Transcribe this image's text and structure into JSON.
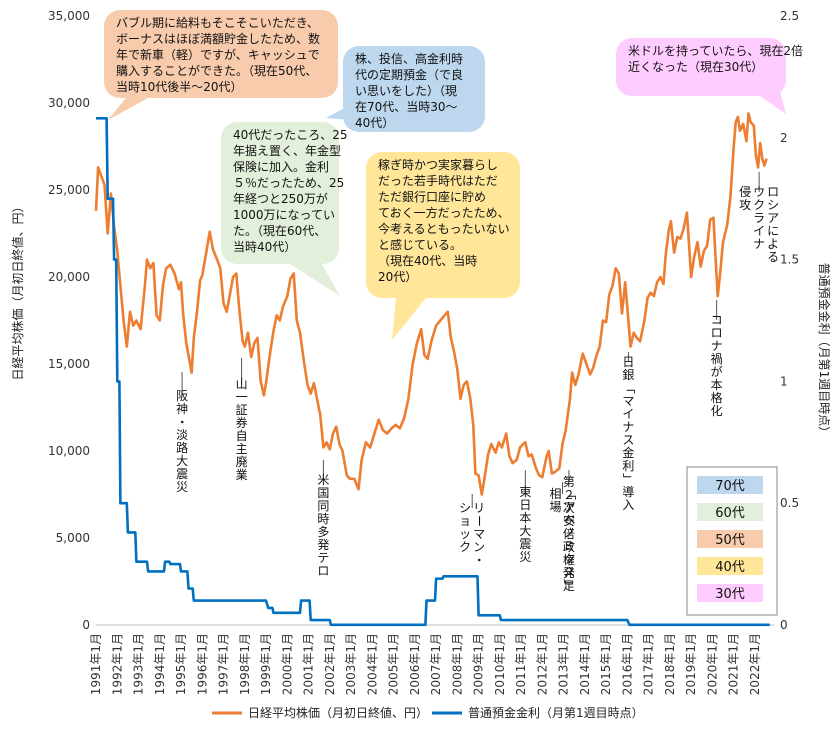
{
  "chart_data": {
    "type": "line",
    "y_left": {
      "label": "日経平均株価（月初日終値、円）",
      "range": [
        0,
        35000
      ],
      "ticks": [
        "0",
        "5,000",
        "10,000",
        "15,000",
        "20,000",
        "25,000",
        "30,000",
        "35,000"
      ]
    },
    "y_right": {
      "label": "普通預金金利（月第1週目時点）",
      "range": [
        0,
        2.5
      ],
      "ticks": [
        "0",
        "0.5",
        "1",
        "1.5",
        "2",
        "2.5"
      ]
    },
    "x_ticks": [
      "1991年1月",
      "1992年1月",
      "1993年1月",
      "1994年1月",
      "1995年1月",
      "1996年1月",
      "1997年1月",
      "1998年1月",
      "1999年1月",
      "2000年1月",
      "2001年1月",
      "2002年1月",
      "2003年1月",
      "2004年1月",
      "2005年1月",
      "2006年1月",
      "2007年1月",
      "2008年1月",
      "2009年1月",
      "2010年1月",
      "2011年1月",
      "2012年1月",
      "2013年1月",
      "2014年1月",
      "2015年1月",
      "2016年1月",
      "2017年1月",
      "2018年1月",
      "2019年1月",
      "2020年1月",
      "2021年1月",
      "2022年1月"
    ],
    "series": [
      {
        "name": "日経平均株価（月初日終値、円）",
        "axis": "left",
        "color": "#ed7d31",
        "points": [
          [
            1991.0,
            23800
          ],
          [
            1991.1,
            26300
          ],
          [
            1991.25,
            25800
          ],
          [
            1991.4,
            25300
          ],
          [
            1991.55,
            22500
          ],
          [
            1991.7,
            24800
          ],
          [
            1991.85,
            22900
          ],
          [
            1992.0,
            21500
          ],
          [
            1992.15,
            19500
          ],
          [
            1992.3,
            17500
          ],
          [
            1992.45,
            16000
          ],
          [
            1992.6,
            18000
          ],
          [
            1992.75,
            17200
          ],
          [
            1992.9,
            17500
          ],
          [
            1993.1,
            17000
          ],
          [
            1993.3,
            19500
          ],
          [
            1993.4,
            21000
          ],
          [
            1993.55,
            20500
          ],
          [
            1993.7,
            20800
          ],
          [
            1993.85,
            17800
          ],
          [
            1994.0,
            17500
          ],
          [
            1994.15,
            19500
          ],
          [
            1994.3,
            20500
          ],
          [
            1994.5,
            20700
          ],
          [
            1994.7,
            20200
          ],
          [
            1994.9,
            19300
          ],
          [
            1995.0,
            19700
          ],
          [
            1995.1,
            17900
          ],
          [
            1995.25,
            16200
          ],
          [
            1995.4,
            15200
          ],
          [
            1995.5,
            14500
          ],
          [
            1995.6,
            16500
          ],
          [
            1995.75,
            18000
          ],
          [
            1995.9,
            19800
          ],
          [
            1996.0,
            20100
          ],
          [
            1996.2,
            21500
          ],
          [
            1996.35,
            22600
          ],
          [
            1996.5,
            21600
          ],
          [
            1996.7,
            21000
          ],
          [
            1996.85,
            20500
          ],
          [
            1997.0,
            18500
          ],
          [
            1997.15,
            18000
          ],
          [
            1997.3,
            19000
          ],
          [
            1997.45,
            20000
          ],
          [
            1997.6,
            20200
          ],
          [
            1997.75,
            18000
          ],
          [
            1997.9,
            16300
          ],
          [
            1998.0,
            16000
          ],
          [
            1998.15,
            16800
          ],
          [
            1998.3,
            15400
          ],
          [
            1998.45,
            16200
          ],
          [
            1998.6,
            16500
          ],
          [
            1998.75,
            14000
          ],
          [
            1998.9,
            13200
          ],
          [
            1999.0,
            13900
          ],
          [
            1999.2,
            15700
          ],
          [
            1999.35,
            16900
          ],
          [
            1999.5,
            17800
          ],
          [
            1999.65,
            17500
          ],
          [
            1999.8,
            18300
          ],
          [
            2000.0,
            18900
          ],
          [
            2000.15,
            19900
          ],
          [
            2000.3,
            20200
          ],
          [
            2000.45,
            17500
          ],
          [
            2000.6,
            16800
          ],
          [
            2000.8,
            15000
          ],
          [
            2000.95,
            13800
          ],
          [
            2001.1,
            13300
          ],
          [
            2001.25,
            13900
          ],
          [
            2001.4,
            13000
          ],
          [
            2001.55,
            12100
          ],
          [
            2001.7,
            10200
          ],
          [
            2001.85,
            10500
          ],
          [
            2002.0,
            10100
          ],
          [
            2002.15,
            11000
          ],
          [
            2002.3,
            11400
          ],
          [
            2002.45,
            10400
          ],
          [
            2002.6,
            10000
          ],
          [
            2002.8,
            8600
          ],
          [
            2002.95,
            8400
          ],
          [
            2003.15,
            8400
          ],
          [
            2003.35,
            7800
          ],
          [
            2003.5,
            9500
          ],
          [
            2003.7,
            10500
          ],
          [
            2003.9,
            10200
          ],
          [
            2004.1,
            11000
          ],
          [
            2004.3,
            11800
          ],
          [
            2004.5,
            11200
          ],
          [
            2004.7,
            11000
          ],
          [
            2004.9,
            11300
          ],
          [
            2005.1,
            11500
          ],
          [
            2005.3,
            11300
          ],
          [
            2005.5,
            11900
          ],
          [
            2005.7,
            13000
          ],
          [
            2005.9,
            15000
          ],
          [
            2006.1,
            16200
          ],
          [
            2006.3,
            17000
          ],
          [
            2006.45,
            15500
          ],
          [
            2006.6,
            15300
          ],
          [
            2006.8,
            16400
          ],
          [
            2007.0,
            17200
          ],
          [
            2007.2,
            17500
          ],
          [
            2007.4,
            17800
          ],
          [
            2007.55,
            18000
          ],
          [
            2007.7,
            16500
          ],
          [
            2007.85,
            15700
          ],
          [
            2008.0,
            14700
          ],
          [
            2008.15,
            13000
          ],
          [
            2008.3,
            13800
          ],
          [
            2008.45,
            14000
          ],
          [
            2008.6,
            13100
          ],
          [
            2008.75,
            11500
          ],
          [
            2008.85,
            8700
          ],
          [
            2009.0,
            8600
          ],
          [
            2009.15,
            7500
          ],
          [
            2009.3,
            8600
          ],
          [
            2009.45,
            9800
          ],
          [
            2009.6,
            10400
          ],
          [
            2009.8,
            9900
          ],
          [
            2009.95,
            10500
          ],
          [
            2010.1,
            10200
          ],
          [
            2010.3,
            11000
          ],
          [
            2010.45,
            9700
          ],
          [
            2010.6,
            9300
          ],
          [
            2010.8,
            9500
          ],
          [
            2010.95,
            10200
          ],
          [
            2011.1,
            10400
          ],
          [
            2011.2,
            10500
          ],
          [
            2011.35,
            9700
          ],
          [
            2011.5,
            9800
          ],
          [
            2011.7,
            9000
          ],
          [
            2011.85,
            8600
          ],
          [
            2012.0,
            8500
          ],
          [
            2012.2,
            9700
          ],
          [
            2012.3,
            10000
          ],
          [
            2012.45,
            8700
          ],
          [
            2012.6,
            8800
          ],
          [
            2012.8,
            9000
          ],
          [
            2012.95,
            10400
          ],
          [
            2013.1,
            11200
          ],
          [
            2013.3,
            13000
          ],
          [
            2013.4,
            14500
          ],
          [
            2013.55,
            13800
          ],
          [
            2013.7,
            14400
          ],
          [
            2013.9,
            15600
          ],
          [
            2014.1,
            14900
          ],
          [
            2014.25,
            14400
          ],
          [
            2014.4,
            14800
          ],
          [
            2014.55,
            15500
          ],
          [
            2014.7,
            16000
          ],
          [
            2014.85,
            17500
          ],
          [
            2015.0,
            17400
          ],
          [
            2015.15,
            19000
          ],
          [
            2015.3,
            19500
          ],
          [
            2015.45,
            20500
          ],
          [
            2015.6,
            20200
          ],
          [
            2015.75,
            17900
          ],
          [
            2015.9,
            19700
          ],
          [
            2016.05,
            17500
          ],
          [
            2016.15,
            16000
          ],
          [
            2016.3,
            16800
          ],
          [
            2016.45,
            16500
          ],
          [
            2016.6,
            16300
          ],
          [
            2016.8,
            17500
          ],
          [
            2016.95,
            18800
          ],
          [
            2017.1,
            19100
          ],
          [
            2017.25,
            18900
          ],
          [
            2017.4,
            19700
          ],
          [
            2017.55,
            20000
          ],
          [
            2017.7,
            19600
          ],
          [
            2017.8,
            21200
          ],
          [
            2017.95,
            22700
          ],
          [
            2018.05,
            23200
          ],
          [
            2018.2,
            21400
          ],
          [
            2018.35,
            22300
          ],
          [
            2018.5,
            22200
          ],
          [
            2018.65,
            22800
          ],
          [
            2018.8,
            23700
          ],
          [
            2018.9,
            21900
          ],
          [
            2019.0,
            20000
          ],
          [
            2019.15,
            21200
          ],
          [
            2019.3,
            22000
          ],
          [
            2019.45,
            20600
          ],
          [
            2019.6,
            21500
          ],
          [
            2019.75,
            21800
          ],
          [
            2019.9,
            23300
          ],
          [
            2020.05,
            23400
          ],
          [
            2020.15,
            21100
          ],
          [
            2020.25,
            18900
          ],
          [
            2020.35,
            20000
          ],
          [
            2020.5,
            22000
          ],
          [
            2020.7,
            23000
          ],
          [
            2020.85,
            24600
          ],
          [
            2021.0,
            27400
          ],
          [
            2021.1,
            28900
          ],
          [
            2021.2,
            29200
          ],
          [
            2021.3,
            28400
          ],
          [
            2021.45,
            28800
          ],
          [
            2021.6,
            27800
          ],
          [
            2021.7,
            29400
          ],
          [
            2021.8,
            28900
          ],
          [
            2021.95,
            28700
          ],
          [
            2022.05,
            27000
          ],
          [
            2022.15,
            26300
          ],
          [
            2022.25,
            27700
          ],
          [
            2022.35,
            26800
          ],
          [
            2022.45,
            26400
          ],
          [
            2022.55,
            26800
          ]
        ]
      },
      {
        "name": "普通預金金利（月第1週目時点）",
        "axis": "right",
        "color": "#0070c0",
        "points": [
          [
            1991.0,
            2.08
          ],
          [
            1991.5,
            2.08
          ],
          [
            1991.55,
            1.75
          ],
          [
            1991.8,
            1.75
          ],
          [
            1991.85,
            1.5
          ],
          [
            1991.95,
            1.5
          ],
          [
            1992.0,
            1.0
          ],
          [
            1992.1,
            1.0
          ],
          [
            1992.15,
            0.5
          ],
          [
            1992.45,
            0.5
          ],
          [
            1992.5,
            0.38
          ],
          [
            1992.85,
            0.38
          ],
          [
            1992.9,
            0.26
          ],
          [
            1993.4,
            0.26
          ],
          [
            1993.45,
            0.22
          ],
          [
            1994.2,
            0.22
          ],
          [
            1994.25,
            0.26
          ],
          [
            1994.45,
            0.26
          ],
          [
            1994.5,
            0.25
          ],
          [
            1994.95,
            0.25
          ],
          [
            1995.0,
            0.22
          ],
          [
            1995.3,
            0.22
          ],
          [
            1995.35,
            0.15
          ],
          [
            1995.55,
            0.15
          ],
          [
            1995.6,
            0.1
          ],
          [
            1999.0,
            0.1
          ],
          [
            1999.1,
            0.07
          ],
          [
            1999.3,
            0.07
          ],
          [
            1999.35,
            0.05
          ],
          [
            2000.6,
            0.05
          ],
          [
            2000.65,
            0.1
          ],
          [
            2001.05,
            0.1
          ],
          [
            2001.1,
            0.02
          ],
          [
            2002.0,
            0.02
          ],
          [
            2002.05,
            0.001
          ],
          [
            2006.5,
            0.001
          ],
          [
            2006.55,
            0.1
          ],
          [
            2006.95,
            0.1
          ],
          [
            2007.0,
            0.19
          ],
          [
            2007.3,
            0.19
          ],
          [
            2007.35,
            0.2
          ],
          [
            2008.95,
            0.2
          ],
          [
            2009.0,
            0.04
          ],
          [
            2010.0,
            0.04
          ],
          [
            2010.05,
            0.02
          ],
          [
            2016.0,
            0.02
          ],
          [
            2016.1,
            0.001
          ],
          [
            2022.7,
            0.001
          ]
        ]
      }
    ],
    "events": [
      {
        "label": "阪神・淡路大震災",
        "x": 1995.05
      },
      {
        "label": "山一証券自主廃業",
        "x": 1997.85
      },
      {
        "label": "米国同時多発テロ",
        "x": 2001.7
      },
      {
        "label": "リーマン・ショック",
        "x": 2008.7
      },
      {
        "label": "東日本大震災",
        "x": 2011.2
      },
      {
        "label": "「アベノミクス」相場",
        "x": 2012.95
      },
      {
        "label": "第２次安倍政権発足",
        "x": 2013.25
      },
      {
        "label": "日銀「マイナス金利」導入",
        "x": 2016.05
      },
      {
        "label": "コロナ禍が本格化",
        "x": 2020.2
      },
      {
        "label": "ロシアによるウクライナ侵攻",
        "x": 2022.2
      }
    ],
    "callouts": [
      {
        "gen": "50代",
        "color": "#f8cbad",
        "lines": [
          "バブル期に給料もそこそこいただき、",
          "ボーナスはほぼ満額貯金したため、数",
          "年で新車（軽）ですが、キャッシュで",
          "購入することができた。（現在50代、",
          "当時10代後半～20代）"
        ]
      },
      {
        "gen": "70代",
        "color": "#bdd7ee",
        "lines": [
          "株、投信、高金利時",
          "代の定期預金（で良",
          "い思いをした）（現",
          "在70代、当時30～",
          "40代）"
        ]
      },
      {
        "gen": "60代",
        "color": "#e2efda",
        "lines": [
          "40代だったころ、25",
          "年据え置く、年金型",
          "保険に加入。金利",
          "５％だったため、25",
          "年経つと250万が",
          "1000万になってい",
          "た。（現在60代、",
          "当時40代）"
        ]
      },
      {
        "gen": "40代",
        "color": "#ffe699",
        "lines": [
          "稼ぎ時かつ実家暮らし",
          "だった若手時代はただ",
          "ただ銀行口座に貯め",
          "ておく一方だったため、",
          "今考えるともったいない",
          "と感じている。",
          "（現在40代、当時",
          "20代）"
        ]
      },
      {
        "gen": "30代",
        "color": "#ffccff",
        "lines": [
          "米ドルを持っていたら、現在2倍",
          "近くなった（現在30代）"
        ]
      }
    ],
    "generation_legend": [
      {
        "label": "70代",
        "color": "#bdd7ee"
      },
      {
        "label": "60代",
        "color": "#e2efda"
      },
      {
        "label": "50代",
        "color": "#f8cbad"
      },
      {
        "label": "40代",
        "color": "#ffe699"
      },
      {
        "label": "30代",
        "color": "#ffccff"
      }
    ]
  }
}
